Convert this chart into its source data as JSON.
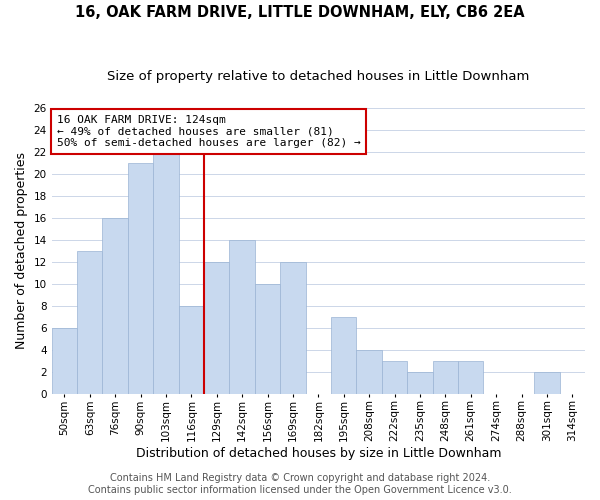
{
  "title1": "16, OAK FARM DRIVE, LITTLE DOWNHAM, ELY, CB6 2EA",
  "title2": "Size of property relative to detached houses in Little Downham",
  "xlabel": "Distribution of detached houses by size in Little Downham",
  "ylabel": "Number of detached properties",
  "bin_labels": [
    "50sqm",
    "63sqm",
    "76sqm",
    "90sqm",
    "103sqm",
    "116sqm",
    "129sqm",
    "142sqm",
    "156sqm",
    "169sqm",
    "182sqm",
    "195sqm",
    "208sqm",
    "222sqm",
    "235sqm",
    "248sqm",
    "261sqm",
    "274sqm",
    "288sqm",
    "301sqm",
    "314sqm"
  ],
  "bar_heights": [
    6,
    13,
    16,
    21,
    22,
    8,
    12,
    14,
    10,
    12,
    0,
    7,
    4,
    3,
    2,
    3,
    3,
    0,
    0,
    2,
    0
  ],
  "bar_color": "#c8d9ef",
  "bar_edge_color": "#9ab4d4",
  "vline_x": 6,
  "vline_color": "#cc0000",
  "annotation_text": "16 OAK FARM DRIVE: 124sqm\n← 49% of detached houses are smaller (81)\n50% of semi-detached houses are larger (82) →",
  "annotation_box_color": "#ffffff",
  "annotation_box_edge": "#cc0000",
  "ylim": [
    0,
    26
  ],
  "yticks": [
    0,
    2,
    4,
    6,
    8,
    10,
    12,
    14,
    16,
    18,
    20,
    22,
    24,
    26
  ],
  "footer1": "Contains HM Land Registry data © Crown copyright and database right 2024.",
  "footer2": "Contains public sector information licensed under the Open Government Licence v3.0.",
  "background_color": "#ffffff",
  "grid_color": "#ccd6e8",
  "title_fontsize": 10.5,
  "subtitle_fontsize": 9.5,
  "axis_label_fontsize": 9,
  "tick_fontsize": 7.5,
  "footer_fontsize": 7,
  "ann_fontsize": 8
}
